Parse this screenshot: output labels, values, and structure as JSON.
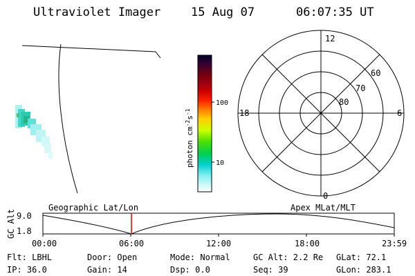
{
  "header": {
    "instrument": "Ultraviolet Imager",
    "date": "15 Aug 07",
    "time": "06:07:35 UT"
  },
  "colorbar": {
    "unit_label": "photon cm",
    "unit_sup_1": "-2",
    "unit_s": "s",
    "unit_sup_2": "-1",
    "tick_labels": [
      "100",
      "10"
    ]
  },
  "polar": {
    "mlt_labels": {
      "top": "12",
      "right": "6",
      "bottom": "0",
      "left": "18"
    },
    "lat_labels": [
      "60",
      "70",
      "80"
    ]
  },
  "timeline": {
    "ylabel": "GC Alt",
    "y_ticks": [
      "9.0",
      "1.8"
    ],
    "left_title": "Geographic Lat/Lon",
    "right_title": "Apex MLat/MLT",
    "x_ticks": [
      "00:00",
      "06:00",
      "12:00",
      "18:00",
      "23:59"
    ]
  },
  "info": {
    "flt": "Flt: LBHL",
    "ip": "IP: 36.0",
    "door": "Door: Open",
    "gain": "Gain: 14",
    "mode": "Mode: Normal",
    "dsp": "Dsp:     0.0",
    "gcalt": "GC Alt: 2.2 Re",
    "seq": "Seq: 39",
    "glat": "GLat:  72.1",
    "glon": "GLon: 283.1"
  },
  "colors": {
    "cursor": "#e00000",
    "colorbar_stops": [
      "#000030",
      "#3a0030",
      "#700010",
      "#a00010",
      "#d00000",
      "#ff2000",
      "#ff8000",
      "#ffd000",
      "#ccff00",
      "#50e000",
      "#00d050",
      "#00d0d0",
      "#80f0f0",
      "#d0f8f8",
      "#ffffff"
    ]
  }
}
